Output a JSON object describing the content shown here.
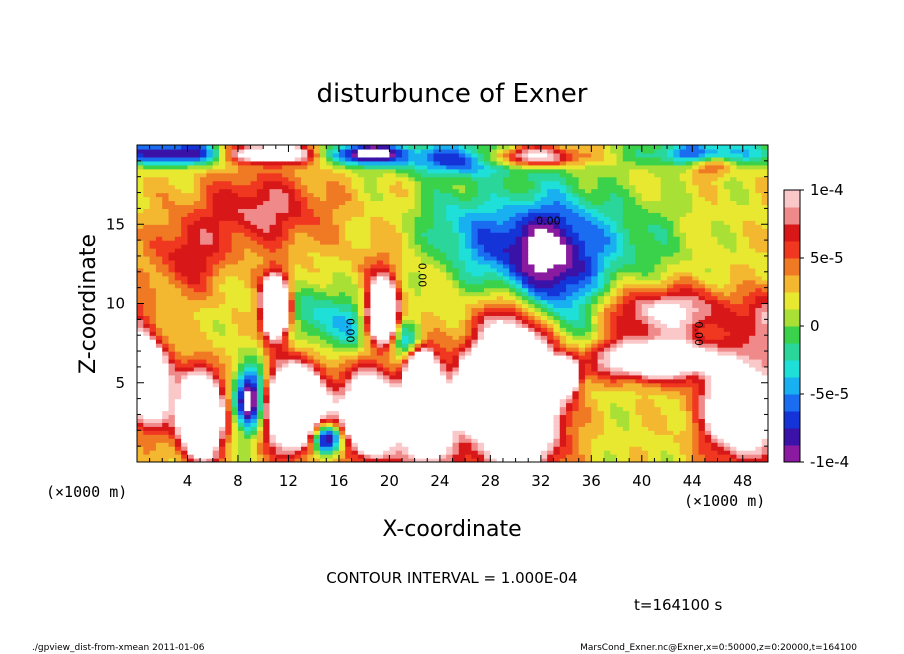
{
  "chart_data": {
    "type": "heatmap",
    "title": "disturbunce of Exner",
    "xlabel": "X-coordinate",
    "ylabel": "Z-coordinate",
    "x_unit": "(×1000 m)",
    "x_unit_right": "(×1000 m)",
    "xlim": [
      0,
      50
    ],
    "ylim": [
      0,
      20
    ],
    "x_ticks": [
      4,
      8,
      12,
      16,
      20,
      24,
      28,
      32,
      36,
      40,
      44,
      48
    ],
    "y_ticks": [
      5,
      10,
      15
    ],
    "grid": false,
    "colorbar": {
      "min": -0.0001,
      "max": 0.0001,
      "tick_values": [
        0.0001,
        5e-05,
        0,
        -5e-05,
        -0.0001
      ],
      "tick_labels": [
        "1e-4",
        "5e-5",
        "0",
        "-5e-5",
        "-1e-4"
      ],
      "colors": [
        "#8a1aa0",
        "#3a12a8",
        "#1434d8",
        "#1a6cf0",
        "#18b0f0",
        "#1ee0d8",
        "#2ad69a",
        "#3ad24a",
        "#a8e036",
        "#e8e830",
        "#f4b830",
        "#f07a24",
        "#f03820",
        "#d81818",
        "#f08a8a",
        "#fac8c8"
      ]
    },
    "contour_labels": [
      {
        "text": "0.00",
        "x": 22.3,
        "y": 11.8,
        "rotate": 90
      },
      {
        "text": "0.00",
        "x": 16.6,
        "y": 8.3,
        "rotate": 90
      },
      {
        "text": "0.00",
        "x": 44.2,
        "y": 8.1,
        "rotate": 90
      },
      {
        "text": "0.00",
        "x": 32.6,
        "y": 15.0,
        "rotate": 0
      }
    ],
    "contour_interval_text": "CONTOUR INTERVAL = 1.000E-04",
    "time_text": "t=164100 s"
  },
  "footer": {
    "left": "./gpview_dist-from-xmean  2011-01-06",
    "right": "MarsCond_Exner.nc@Exner,x=0:50000,z=0:20000,t=164100"
  }
}
